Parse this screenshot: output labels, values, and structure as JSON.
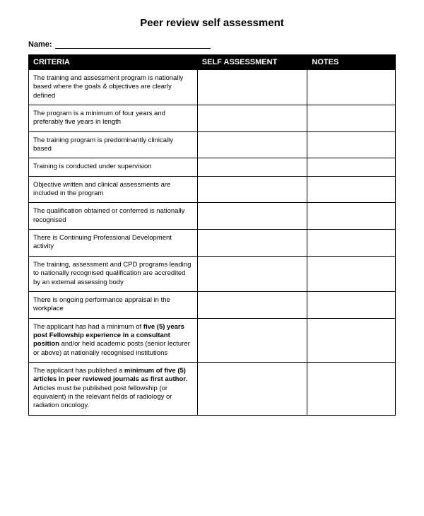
{
  "title": "Peer review self assessment",
  "name_label": "Name:",
  "table": {
    "columns": [
      "CRITERIA",
      "SELF ASSESSMENT",
      "NOTES"
    ],
    "header_bg": "#000000",
    "header_color": "#ffffff",
    "border_color": "#000000",
    "font_size_header": 11,
    "font_size_cell": 9.5,
    "col_widths_pct": [
      46,
      30,
      24
    ],
    "rows": [
      {
        "criteria": "The training and assessment program is nationally based where the goals & objectives are clearly defined",
        "self": "",
        "notes": ""
      },
      {
        "criteria": "The program is a minimum of four years and preferably five years in length",
        "self": "",
        "notes": ""
      },
      {
        "criteria": "The training program is predominantly clinically based",
        "self": "",
        "notes": ""
      },
      {
        "criteria": "Training is conducted under supervision",
        "self": "",
        "notes": ""
      },
      {
        "criteria": "Objective written and clinical assessments are included in the program",
        "self": "",
        "notes": ""
      },
      {
        "criteria": "The qualification obtained or conferred is nationally recognised",
        "self": "",
        "notes": ""
      },
      {
        "criteria": "There is Continuing Professional Development activity",
        "self": "",
        "notes": ""
      },
      {
        "criteria": "The training, assessment and CPD programs leading to nationally recognised qualification are accredited by an external assessing body",
        "self": "",
        "notes": ""
      },
      {
        "criteria": "There is ongoing performance appraisal in the workplace",
        "self": "",
        "notes": ""
      },
      {
        "criteria_parts": [
          {
            "text": "The applicant has had a minimum of ",
            "bold": false
          },
          {
            "text": "five (5) years post Fellowship experience in a consultant position",
            "bold": true
          },
          {
            "text": " and/or held academic posts (senior lecturer or above) at nationally recognised institutions",
            "bold": false
          }
        ],
        "self": "",
        "notes": ""
      },
      {
        "criteria_parts": [
          {
            "text": "The applicant has published a ",
            "bold": false
          },
          {
            "text": "minimum of five (5) articles in peer reviewed journals as first author.",
            "bold": true
          },
          {
            "text": " Articles must be published post fellowship (or equivalent) in the relevant fields of radiology or radiation oncology.",
            "bold": false
          }
        ],
        "self": "",
        "notes": ""
      }
    ]
  }
}
